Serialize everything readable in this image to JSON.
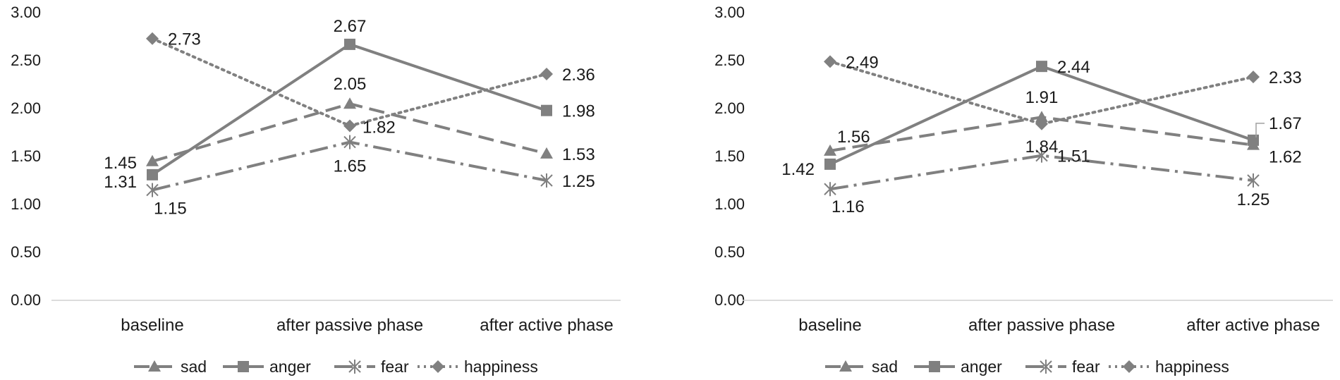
{
  "chart_data": [
    {
      "type": "line",
      "title": "",
      "xlabel": "",
      "ylabel": "",
      "ylim": [
        0,
        3
      ],
      "yticks": [
        "0.00",
        "0.50",
        "1.00",
        "1.50",
        "2.00",
        "2.50",
        "3.00"
      ],
      "categories": [
        "baseline",
        "after passive phase",
        "after active phase"
      ],
      "grid": false,
      "legend_position": "bottom",
      "series": [
        {
          "name": "sad",
          "values": [
            1.45,
            2.05,
            1.53
          ],
          "labels": [
            "1.45",
            "2.05",
            "1.53"
          ],
          "color": "#808080"
        },
        {
          "name": "anger",
          "values": [
            1.31,
            2.67,
            1.98
          ],
          "labels": [
            "1.31",
            "2.67",
            "1.98"
          ],
          "color": "#808080"
        },
        {
          "name": "fear",
          "values": [
            1.15,
            1.65,
            1.25
          ],
          "labels": [
            "1.15",
            "1.65",
            "1.25"
          ],
          "color": "#808080"
        },
        {
          "name": "happiness",
          "values": [
            2.73,
            1.82,
            2.36
          ],
          "labels": [
            "2.73",
            "1.82",
            "2.36"
          ],
          "color": "#808080"
        }
      ]
    },
    {
      "type": "line",
      "title": "",
      "xlabel": "",
      "ylabel": "",
      "ylim": [
        0,
        3
      ],
      "yticks": [
        "0.00",
        "0.50",
        "1.00",
        "1.50",
        "2.00",
        "2.50",
        "3.00"
      ],
      "categories": [
        "baseline",
        "after passive phase",
        "after active phase"
      ],
      "grid": false,
      "legend_position": "bottom",
      "series": [
        {
          "name": "sad",
          "values": [
            1.56,
            1.91,
            1.62
          ],
          "labels": [
            "1.56",
            "1.91",
            "1.62"
          ],
          "color": "#808080"
        },
        {
          "name": "anger",
          "values": [
            1.42,
            2.44,
            1.67
          ],
          "labels": [
            "1.42",
            "2.44",
            "1.67"
          ],
          "color": "#808080"
        },
        {
          "name": "fear",
          "values": [
            1.16,
            1.51,
            1.25
          ],
          "labels": [
            "1.16",
            "1.51",
            "1.25"
          ],
          "color": "#808080"
        },
        {
          "name": "happiness",
          "values": [
            2.49,
            1.84,
            2.33
          ],
          "labels": [
            "2.49",
            "1.84",
            "2.33"
          ],
          "color": "#808080"
        }
      ]
    }
  ]
}
